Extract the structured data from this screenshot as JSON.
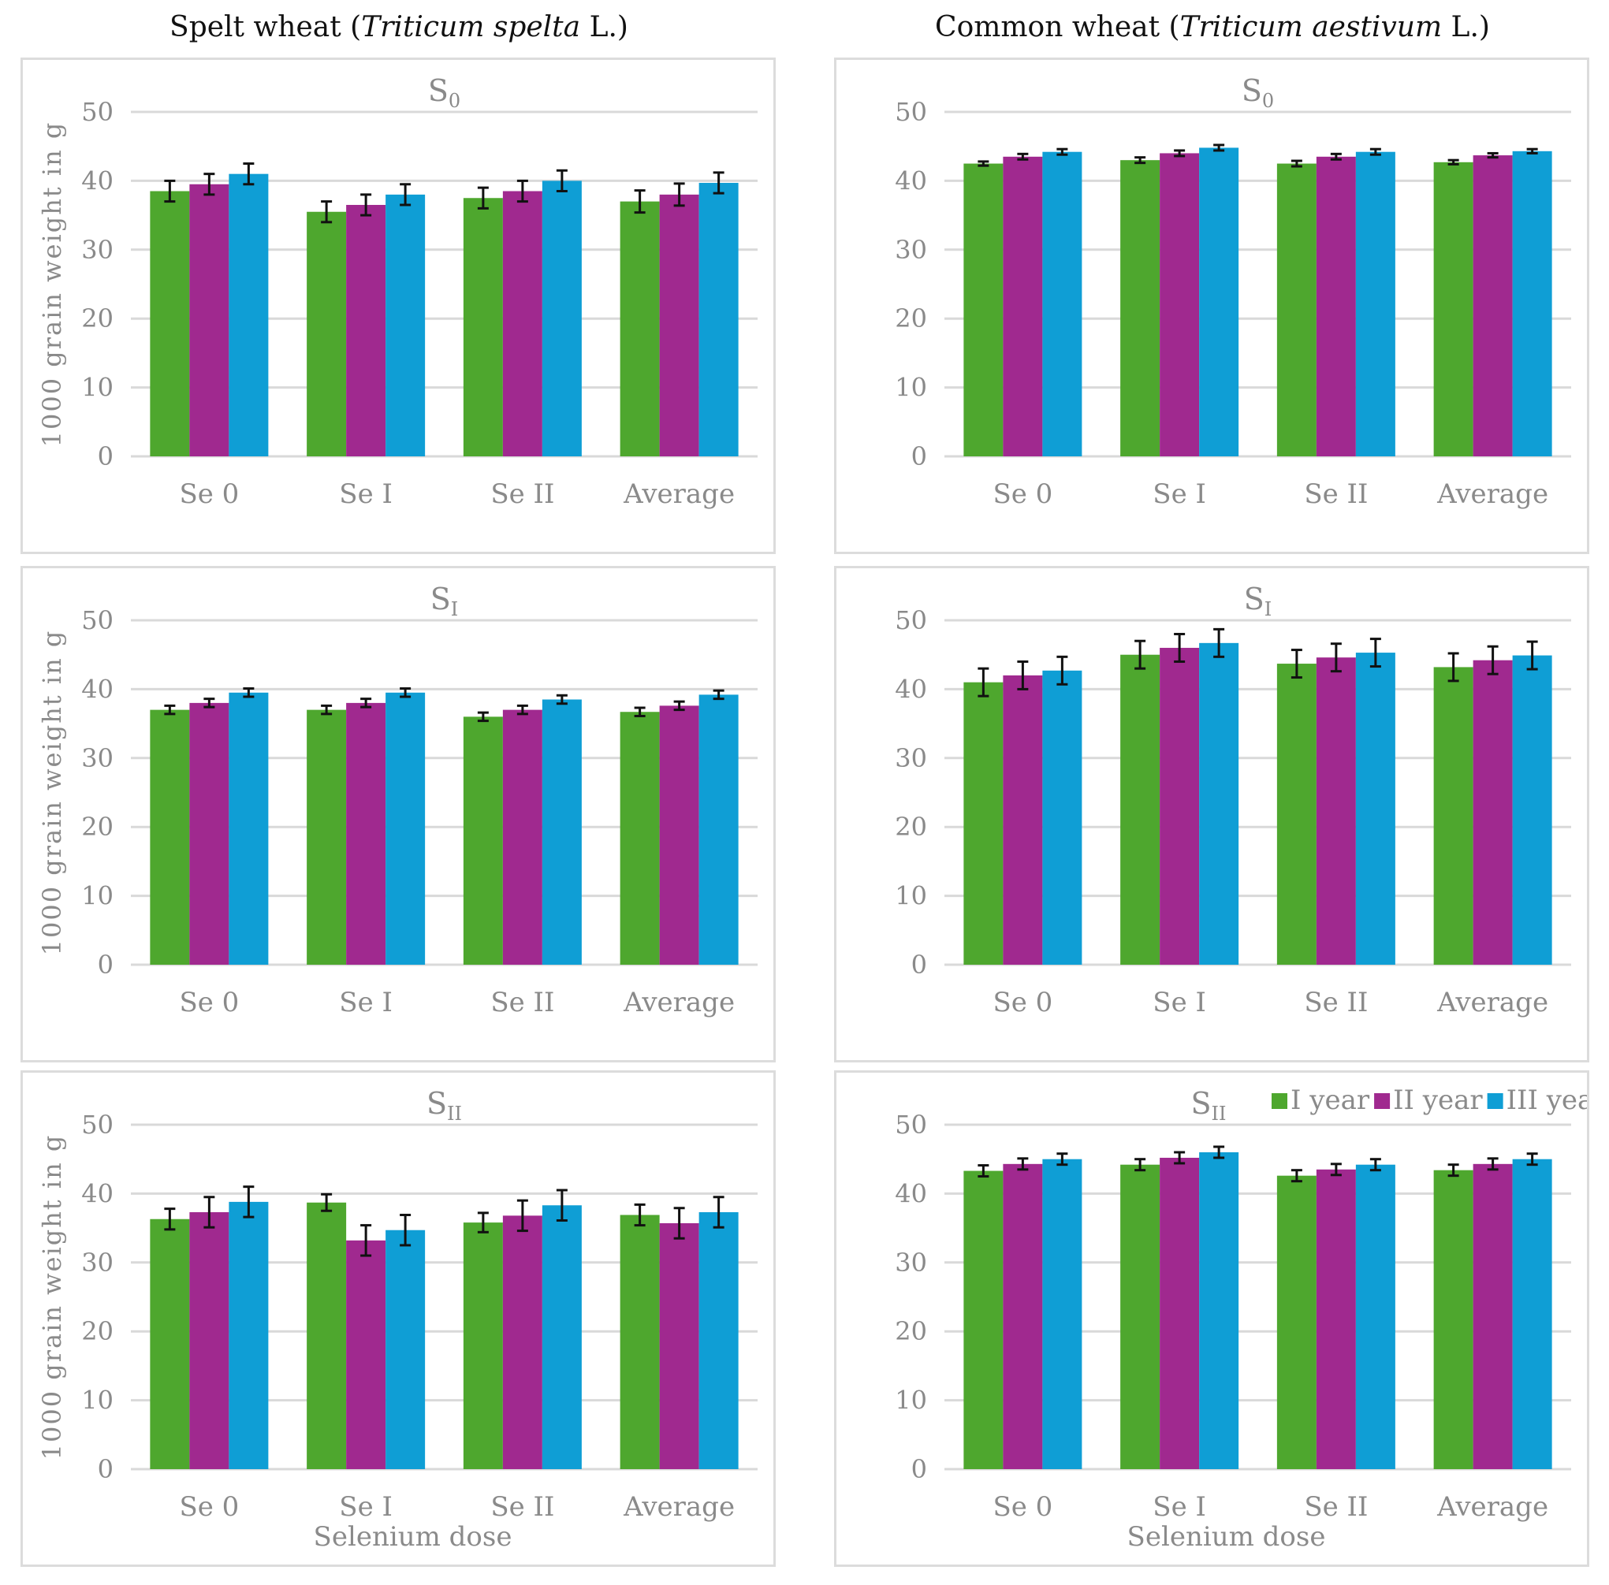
{
  "titles": {
    "left": {
      "prefix": "Spelt wheat (",
      "species": "Triticum spelta",
      "suffix": " L.)"
    },
    "right": {
      "prefix": "Common wheat (",
      "species": "Triticum aestivum",
      "suffix": " L.)"
    }
  },
  "chart_data": [
    {
      "type": "bar",
      "title": "S0",
      "title_main": "S",
      "title_sub": "0",
      "crop": "Spelt wheat",
      "ylabel": "1000 grain weight in g",
      "xlabel": "",
      "ylim": [
        0,
        50
      ],
      "yticks": [
        0,
        10,
        20,
        30,
        40,
        50
      ],
      "categories": [
        "Se 0",
        "Se I",
        "Se II",
        "Average"
      ],
      "series": [
        {
          "name": "I year",
          "values": [
            38.5,
            35.5,
            37.5,
            37.0
          ],
          "errors": [
            1.5,
            1.5,
            1.5,
            1.6
          ]
        },
        {
          "name": "II year",
          "values": [
            39.5,
            36.5,
            38.5,
            38.0
          ],
          "errors": [
            1.5,
            1.5,
            1.5,
            1.6
          ]
        },
        {
          "name": "III year",
          "values": [
            41.0,
            38.0,
            40.0,
            39.7
          ],
          "errors": [
            1.5,
            1.5,
            1.5,
            1.5
          ]
        }
      ]
    },
    {
      "type": "bar",
      "title": "S0",
      "title_main": "S",
      "title_sub": "0",
      "crop": "Common wheat",
      "ylabel": "",
      "xlabel": "",
      "ylim": [
        0,
        50
      ],
      "yticks": [
        0,
        10,
        20,
        30,
        40,
        50
      ],
      "categories": [
        "Se 0",
        "Se I",
        "Se II",
        "Average"
      ],
      "series": [
        {
          "name": "I year",
          "values": [
            42.5,
            43.0,
            42.5,
            42.7
          ],
          "errors": [
            0.3,
            0.4,
            0.4,
            0.3
          ]
        },
        {
          "name": "II year",
          "values": [
            43.5,
            44.0,
            43.5,
            43.7
          ],
          "errors": [
            0.4,
            0.4,
            0.4,
            0.3
          ]
        },
        {
          "name": "III year",
          "values": [
            44.2,
            44.8,
            44.2,
            44.3
          ],
          "errors": [
            0.4,
            0.4,
            0.4,
            0.3
          ]
        }
      ]
    },
    {
      "type": "bar",
      "title": "SI",
      "title_main": "S",
      "title_sub": "I",
      "crop": "Spelt wheat",
      "ylabel": "1000 grain weight in g",
      "xlabel": "",
      "ylim": [
        0,
        50
      ],
      "yticks": [
        0,
        10,
        20,
        30,
        40,
        50
      ],
      "categories": [
        "Se 0",
        "Se I",
        "Se II",
        "Average"
      ],
      "series": [
        {
          "name": "I year",
          "values": [
            37.0,
            37.0,
            36.0,
            36.7
          ],
          "errors": [
            0.6,
            0.6,
            0.6,
            0.6
          ]
        },
        {
          "name": "II year",
          "values": [
            38.0,
            38.0,
            37.0,
            37.6
          ],
          "errors": [
            0.6,
            0.6,
            0.6,
            0.6
          ]
        },
        {
          "name": "III year",
          "values": [
            39.5,
            39.5,
            38.5,
            39.2
          ],
          "errors": [
            0.6,
            0.6,
            0.6,
            0.6
          ]
        }
      ]
    },
    {
      "type": "bar",
      "title": "SI",
      "title_main": "S",
      "title_sub": "I",
      "crop": "Common wheat",
      "ylabel": "",
      "xlabel": "",
      "ylim": [
        0,
        50
      ],
      "yticks": [
        0,
        10,
        20,
        30,
        40,
        50
      ],
      "categories": [
        "Se 0",
        "Se I",
        "Se II",
        "Average"
      ],
      "series": [
        {
          "name": "I year",
          "values": [
            41.0,
            45.0,
            43.7,
            43.2
          ],
          "errors": [
            2.0,
            2.0,
            2.0,
            2.0
          ]
        },
        {
          "name": "II year",
          "values": [
            42.0,
            46.0,
            44.6,
            44.2
          ],
          "errors": [
            2.0,
            2.0,
            2.0,
            2.0
          ]
        },
        {
          "name": "III year",
          "values": [
            42.7,
            46.7,
            45.3,
            44.9
          ],
          "errors": [
            2.0,
            2.0,
            2.0,
            2.0
          ]
        }
      ]
    },
    {
      "type": "bar",
      "title": "SII",
      "title_main": "S",
      "title_sub": "II",
      "crop": "Spelt wheat",
      "ylabel": "1000 grain weight in g",
      "xlabel": "Selenium dose",
      "ylim": [
        0,
        50
      ],
      "yticks": [
        0,
        10,
        20,
        30,
        40,
        50
      ],
      "categories": [
        "Se 0",
        "Se I",
        "Se II",
        "Average"
      ],
      "series": [
        {
          "name": "I year",
          "values": [
            36.3,
            38.7,
            35.8,
            36.9
          ],
          "errors": [
            1.5,
            1.2,
            1.4,
            1.5
          ]
        },
        {
          "name": "II year",
          "values": [
            37.3,
            33.2,
            36.8,
            35.7
          ],
          "errors": [
            2.2,
            2.2,
            2.2,
            2.2
          ]
        },
        {
          "name": "III year",
          "values": [
            38.8,
            34.7,
            38.3,
            37.3
          ],
          "errors": [
            2.2,
            2.2,
            2.2,
            2.2
          ]
        }
      ]
    },
    {
      "type": "bar",
      "title": "SII",
      "title_main": "S",
      "title_sub": "II",
      "crop": "Common wheat",
      "ylabel": "",
      "xlabel": "Selenium dose",
      "ylim": [
        0,
        50
      ],
      "yticks": [
        0,
        10,
        20,
        30,
        40,
        50
      ],
      "categories": [
        "Se 0",
        "Se I",
        "Se II",
        "Average"
      ],
      "legend": {
        "placement": "top-right",
        "entries": [
          "I year",
          "II year",
          "III year"
        ]
      },
      "series": [
        {
          "name": "I year",
          "values": [
            43.3,
            44.2,
            42.6,
            43.4
          ],
          "errors": [
            0.8,
            0.8,
            0.8,
            0.8
          ]
        },
        {
          "name": "II year",
          "values": [
            44.3,
            45.2,
            43.5,
            44.3
          ],
          "errors": [
            0.8,
            0.8,
            0.8,
            0.8
          ]
        },
        {
          "name": "III year",
          "values": [
            45.0,
            46.0,
            44.2,
            45.0
          ],
          "errors": [
            0.8,
            0.8,
            0.8,
            0.8
          ]
        }
      ]
    }
  ],
  "colors": {
    "I year": "#4ea72e",
    "II year": "#a0298f",
    "III year": "#0f9ed5",
    "grid": "#d9d9d9",
    "error": "#111111"
  }
}
